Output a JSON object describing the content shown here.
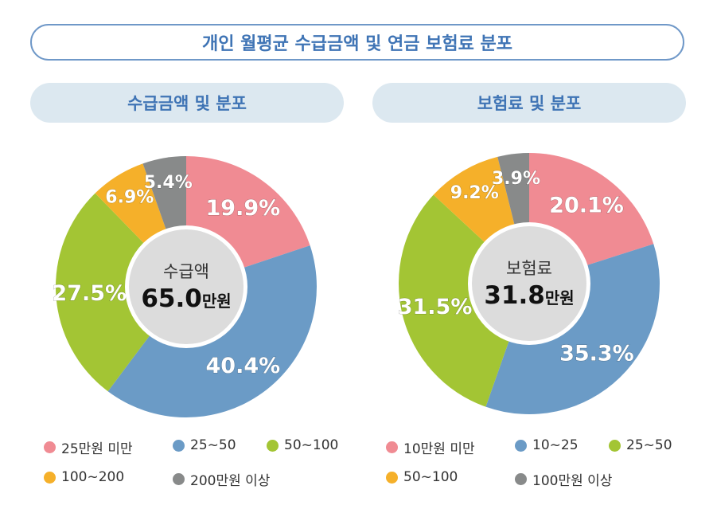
{
  "title": "개인 월평균 수급금액 및 연금 보험료 분포",
  "chart_data": [
    {
      "type": "pie",
      "subtitle": "수급금액 및 분포",
      "center_label": "수급액",
      "center_value": "65.0",
      "center_unit": "만원",
      "categories": [
        "25만원 미만",
        "25~50",
        "50~100",
        "100~200",
        "200만원 이상"
      ],
      "values": [
        19.9,
        40.4,
        27.5,
        6.9,
        5.4
      ],
      "labels": [
        "19.9%",
        "40.4%",
        "27.5%",
        "6.9%",
        "5.4%"
      ],
      "colors": [
        "#f08b93",
        "#6b9bc6",
        "#a3c534",
        "#f5b02a",
        "#888a8a"
      ],
      "legend": "bottom"
    },
    {
      "type": "pie",
      "subtitle": "보험료 및 분포",
      "center_label": "보험료",
      "center_value": "31.8",
      "center_unit": "만원",
      "categories": [
        "10만원 미만",
        "10~25",
        "25~50",
        "50~100",
        "100만원 이상"
      ],
      "values": [
        20.1,
        35.3,
        31.5,
        9.2,
        3.9
      ],
      "labels": [
        "20.1%",
        "35.3%",
        "31.5%",
        "9.2%",
        "3.9%"
      ],
      "colors": [
        "#f08b93",
        "#6b9bc6",
        "#a3c534",
        "#f5b02a",
        "#888a8a"
      ],
      "legend": "bottom"
    }
  ]
}
